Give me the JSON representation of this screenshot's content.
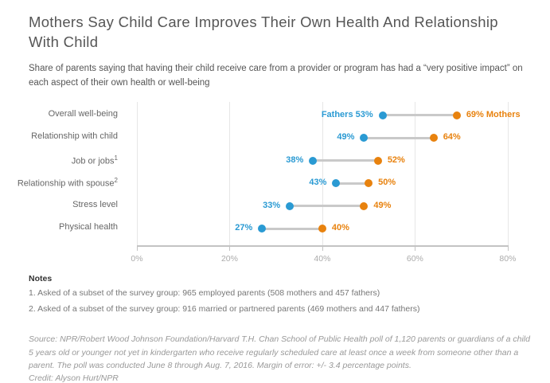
{
  "header": {
    "title": "Mothers Say Child Care Improves Their Own Health And Relationship With Child",
    "subtitle": "Share of parents saying that having their child receive care from a provider or program has had a “very positive impact” on each aspect of their own health or well-being"
  },
  "colors": {
    "fathers_blue": "#2a9ad3",
    "mothers_orange": "#e8820e",
    "connector_gray": "#c9c9c9",
    "gridline_gray": "#e6e6e6",
    "axis_gray": "#c3c3c3"
  },
  "chart_data": {
    "type": "dumbbell-dot-plot",
    "title": "Mothers Say Child Care Improves Their Own Health And Relationship With Child",
    "categories": [
      "Overall well-being",
      "Relationship with child",
      "Job or jobs",
      "Relationship with spouse",
      "Stress level",
      "Physical health"
    ],
    "category_superscripts": [
      "",
      "",
      "1",
      "2",
      "",
      ""
    ],
    "series": [
      {
        "name": "Fathers",
        "color": "#2a9ad3",
        "values": [
          53,
          49,
          38,
          43,
          33,
          27
        ]
      },
      {
        "name": "Mothers",
        "color": "#e8820e",
        "values": [
          69,
          64,
          52,
          50,
          49,
          40
        ]
      }
    ],
    "value_labels_fathers": [
      "Fathers 53%",
      "49%",
      "38%",
      "43%",
      "33%",
      "27%"
    ],
    "value_labels_mothers": [
      "69% Mothers",
      "64%",
      "52%",
      "50%",
      "49%",
      "40%"
    ],
    "xlim": [
      0,
      83.8
    ],
    "ticks": [
      0,
      20,
      40,
      60,
      80
    ],
    "tick_labels": [
      "0%",
      "20%",
      "40%",
      "60%",
      "80%"
    ],
    "grid": "vertical",
    "legend_position": "inline-first-row"
  },
  "notes": {
    "heading": "Notes",
    "items": [
      "1. Asked of a subset of the survey group: 965 employed parents (508 mothers and 457 fathers)",
      "2. Asked of a subset of the survey group: 916 married or partnered parents (469 mothers and 447 fathers)"
    ]
  },
  "footer": {
    "source": "Source: NPR/Robert Wood Johnson Foundation/Harvard T.H. Chan School of Public Health poll of 1,120 parents or guardians of a child 5 years old or younger not yet in kindergarten who receive regularly scheduled care at least once a week from someone other than a parent. The poll was conducted June 8 through Aug. 7, 2016. Margin of error: +/- 3.4 percentage points.",
    "credit": "Credit: Alyson Hurt/NPR"
  }
}
